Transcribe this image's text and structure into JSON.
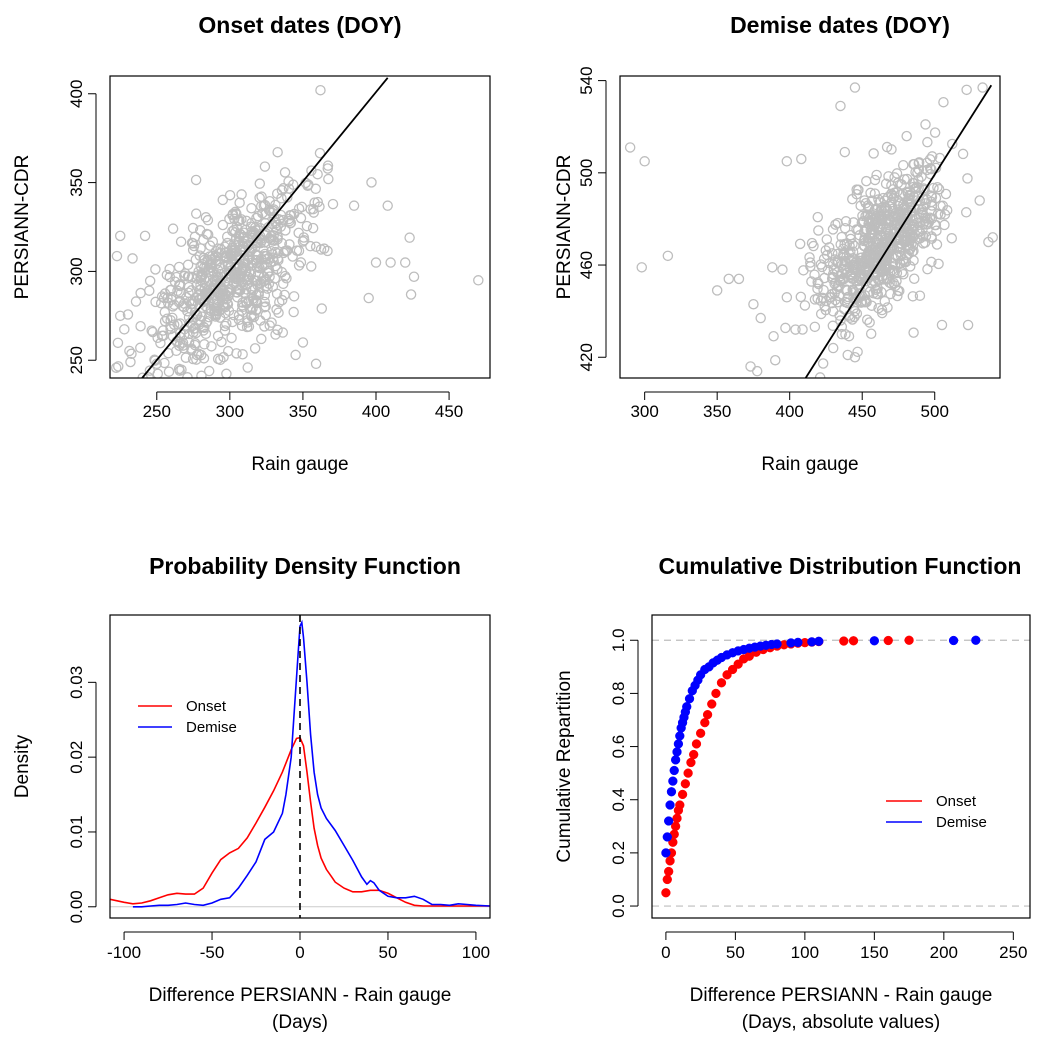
{
  "chart_data": [
    {
      "type": "scatter",
      "title": "Onset dates (DOY)",
      "xlabel": "Rain gauge",
      "ylabel": "PERSIANN-CDR",
      "xlim": [
        218,
        478
      ],
      "ylim": [
        240,
        410
      ],
      "xticks": [
        250,
        300,
        350,
        400,
        450
      ],
      "yticks": [
        250,
        300,
        350,
        400
      ],
      "point_color": "#bdbdbd",
      "fit_line": {
        "x": [
          240,
          408
        ],
        "y": [
          240,
          409
        ],
        "color": "#000000"
      },
      "cluster": {
        "x_center": 300,
        "x_sd": 28,
        "y_center": 295,
        "y_sd": 20,
        "slope": 0.55,
        "n": 700
      },
      "outliers": [
        {
          "x": 362,
          "y": 402
        },
        {
          "x": 470,
          "y": 295
        },
        {
          "x": 225,
          "y": 320
        },
        {
          "x": 225,
          "y": 275
        },
        {
          "x": 232,
          "y": 249
        },
        {
          "x": 408,
          "y": 337
        },
        {
          "x": 420,
          "y": 305
        },
        {
          "x": 423,
          "y": 319
        },
        {
          "x": 424,
          "y": 287
        },
        {
          "x": 426,
          "y": 297
        },
        {
          "x": 385,
          "y": 337
        },
        {
          "x": 345,
          "y": 253
        },
        {
          "x": 350,
          "y": 260
        },
        {
          "x": 359,
          "y": 248
        },
        {
          "x": 395,
          "y": 285
        },
        {
          "x": 400,
          "y": 305
        },
        {
          "x": 410,
          "y": 305
        },
        {
          "x": 324,
          "y": 359
        },
        {
          "x": 242,
          "y": 320
        },
        {
          "x": 250,
          "y": 248
        }
      ]
    },
    {
      "type": "scatter",
      "title": "Demise dates (DOY)",
      "xlabel": "Rain gauge",
      "ylabel": "PERSIANN-CDR",
      "xlim": [
        283,
        545
      ],
      "ylim": [
        411,
        542
      ],
      "xticks": [
        300,
        350,
        400,
        450,
        500
      ],
      "yticks": [
        420,
        460,
        500,
        540
      ],
      "point_color": "#bdbdbd",
      "fit_line": {
        "x": [
          411,
          539
        ],
        "y": [
          411,
          538
        ],
        "color": "#000000"
      },
      "cluster": {
        "x_center": 463,
        "x_sd": 22,
        "y_center": 470,
        "y_sd": 14,
        "slope": 0.5,
        "n": 700
      },
      "outliers": [
        {
          "x": 290,
          "y": 511
        },
        {
          "x": 300,
          "y": 505
        },
        {
          "x": 298,
          "y": 459
        },
        {
          "x": 316,
          "y": 464
        },
        {
          "x": 350,
          "y": 449
        },
        {
          "x": 358,
          "y": 454
        },
        {
          "x": 365,
          "y": 454
        },
        {
          "x": 373,
          "y": 416
        },
        {
          "x": 375,
          "y": 443
        },
        {
          "x": 380,
          "y": 437
        },
        {
          "x": 388,
          "y": 459
        },
        {
          "x": 395,
          "y": 458
        },
        {
          "x": 398,
          "y": 505
        },
        {
          "x": 404,
          "y": 432
        },
        {
          "x": 408,
          "y": 506
        },
        {
          "x": 435,
          "y": 529
        },
        {
          "x": 438,
          "y": 509
        },
        {
          "x": 445,
          "y": 537
        },
        {
          "x": 522,
          "y": 536
        },
        {
          "x": 533,
          "y": 537
        },
        {
          "x": 540,
          "y": 472
        },
        {
          "x": 537,
          "y": 470
        },
        {
          "x": 531,
          "y": 488
        },
        {
          "x": 523,
          "y": 434
        },
        {
          "x": 505,
          "y": 434
        },
        {
          "x": 445,
          "y": 420
        },
        {
          "x": 440,
          "y": 421
        },
        {
          "x": 430,
          "y": 424
        }
      ]
    },
    {
      "type": "line",
      "title": "Probability Density Function",
      "xlabel": "Difference PERSIANN - Rain gauge\n(Days)",
      "xlabel_lines": [
        "Difference PERSIANN - Rain gauge",
        "(Days)"
      ],
      "ylabel": "Density",
      "xlim": [
        -108,
        108
      ],
      "ylim": [
        -0.0015,
        0.039
      ],
      "xticks": [
        -100,
        -50,
        0,
        50,
        100
      ],
      "yticks": [
        0.0,
        0.01,
        0.02,
        0.03
      ],
      "ytick_labels": [
        "0.00",
        "0.01",
        "0.02",
        "0.03"
      ],
      "legend": {
        "position": "top-left",
        "entries": [
          {
            "name": "Onset",
            "color": "#ff0000"
          },
          {
            "name": "Demise",
            "color": "#0000ff"
          }
        ]
      },
      "vline": {
        "x": 0,
        "style": "dashed",
        "color": "#000000"
      },
      "hline": {
        "y": 0,
        "color": "#cccccc"
      },
      "series": [
        {
          "name": "Onset",
          "color": "#ff0000",
          "x": [
            -108,
            -100,
            -95,
            -90,
            -85,
            -80,
            -75,
            -70,
            -65,
            -60,
            -55,
            -50,
            -45,
            -40,
            -35,
            -30,
            -25,
            -20,
            -15,
            -10,
            -5,
            -2,
            0,
            2,
            4,
            6,
            8,
            10,
            12,
            15,
            18,
            20,
            25,
            30,
            35,
            40,
            45,
            50,
            55,
            60,
            65,
            70,
            80,
            90,
            100,
            108
          ],
          "y": [
            0.001,
            0.0006,
            0.0004,
            0.0005,
            0.0008,
            0.0012,
            0.0016,
            0.0018,
            0.0017,
            0.0017,
            0.0025,
            0.0045,
            0.0063,
            0.0072,
            0.0078,
            0.0092,
            0.0112,
            0.0133,
            0.0155,
            0.018,
            0.021,
            0.0225,
            0.0226,
            0.0215,
            0.018,
            0.014,
            0.0105,
            0.0082,
            0.0065,
            0.005,
            0.004,
            0.0033,
            0.0025,
            0.002,
            0.002,
            0.0022,
            0.0022,
            0.0018,
            0.0012,
            0.0006,
            0.0002,
            0.0001,
            0.0001,
            0.0001,
            0.0001,
            0.0001
          ]
        },
        {
          "name": "Demise",
          "color": "#0000ff",
          "x": [
            -95,
            -90,
            -85,
            -80,
            -75,
            -70,
            -65,
            -60,
            -55,
            -50,
            -45,
            -40,
            -35,
            -30,
            -25,
            -20,
            -15,
            -10,
            -8,
            -5,
            -3,
            -1,
            0,
            1,
            2,
            4,
            6,
            8,
            10,
            12,
            15,
            20,
            25,
            30,
            35,
            38,
            40,
            42,
            45,
            50,
            55,
            60,
            65,
            70,
            75,
            80,
            85,
            90,
            95,
            100,
            108
          ],
          "y": [
            0.0,
            0.0,
            0.0001,
            0.0002,
            0.0002,
            0.0003,
            0.0005,
            0.0003,
            0.0002,
            0.0005,
            0.001,
            0.0012,
            0.0025,
            0.0042,
            0.006,
            0.009,
            0.01,
            0.0125,
            0.015,
            0.02,
            0.027,
            0.034,
            0.0375,
            0.038,
            0.036,
            0.03,
            0.023,
            0.018,
            0.015,
            0.0132,
            0.0118,
            0.0102,
            0.0082,
            0.0062,
            0.004,
            0.003,
            0.0035,
            0.0032,
            0.0022,
            0.0014,
            0.0012,
            0.0012,
            0.0014,
            0.001,
            0.0003,
            0.0003,
            0.0002,
            0.0004,
            0.0003,
            0.0002,
            0.0001
          ]
        }
      ]
    },
    {
      "type": "scatter",
      "title": "Cumulative Distribution Function",
      "xlabel": "Difference PERSIANN - Rain gauge\n(Days, absolute values)",
      "xlabel_lines": [
        "Difference PERSIANN - Rain gauge",
        "(Days, absolute values)"
      ],
      "ylabel": "Cumulative Repartition",
      "xlim": [
        -10,
        262
      ],
      "ylim": [
        -0.045,
        1.095
      ],
      "xticks": [
        0,
        50,
        100,
        150,
        200,
        250
      ],
      "yticks": [
        0.0,
        0.2,
        0.4,
        0.6,
        0.8,
        1.0
      ],
      "ytick_labels": [
        "0.0",
        "0.2",
        "0.4",
        "0.6",
        "0.8",
        "1.0"
      ],
      "hlines": [
        {
          "y": 0,
          "color": "#bdbdbd",
          "style": "dashed"
        },
        {
          "y": 1,
          "color": "#bdbdbd",
          "style": "dashed"
        }
      ],
      "legend": {
        "position": "right",
        "entries": [
          {
            "name": "Onset",
            "color": "#ff0000"
          },
          {
            "name": "Demise",
            "color": "#0000ff"
          }
        ]
      },
      "series": [
        {
          "name": "Onset",
          "color": "#ff0000",
          "x": [
            0,
            1,
            2,
            3,
            4,
            5,
            6,
            7,
            8,
            9,
            10,
            12,
            14,
            16,
            18,
            20,
            22,
            25,
            28,
            30,
            33,
            36,
            40,
            44,
            48,
            52,
            56,
            60,
            65,
            70,
            75,
            80,
            85,
            90,
            95,
            100,
            105,
            110,
            128,
            135,
            160,
            175
          ],
          "y": [
            0.05,
            0.1,
            0.13,
            0.17,
            0.2,
            0.24,
            0.27,
            0.3,
            0.33,
            0.36,
            0.38,
            0.42,
            0.46,
            0.5,
            0.54,
            0.57,
            0.61,
            0.65,
            0.69,
            0.72,
            0.76,
            0.8,
            0.84,
            0.87,
            0.89,
            0.91,
            0.93,
            0.94,
            0.955,
            0.965,
            0.972,
            0.978,
            0.983,
            0.986,
            0.989,
            0.991,
            0.993,
            0.995,
            0.997,
            0.998,
            0.999,
            1.0
          ]
        },
        {
          "name": "Demise",
          "color": "#0000ff",
          "x": [
            0,
            1,
            2,
            3,
            4,
            5,
            6,
            7,
            8,
            9,
            10,
            11,
            12,
            13,
            14,
            15,
            17,
            19,
            21,
            23,
            25,
            28,
            31,
            34,
            37,
            40,
            44,
            48,
            52,
            56,
            60,
            64,
            68,
            72,
            76,
            80,
            90,
            95,
            105,
            110,
            150,
            207,
            223
          ],
          "y": [
            0.2,
            0.26,
            0.32,
            0.38,
            0.43,
            0.47,
            0.51,
            0.55,
            0.58,
            0.61,
            0.64,
            0.67,
            0.69,
            0.71,
            0.73,
            0.75,
            0.78,
            0.81,
            0.83,
            0.85,
            0.87,
            0.89,
            0.9,
            0.915,
            0.925,
            0.935,
            0.945,
            0.953,
            0.96,
            0.965,
            0.97,
            0.974,
            0.978,
            0.981,
            0.984,
            0.986,
            0.99,
            0.992,
            0.994,
            0.996,
            0.998,
            0.999,
            1.0
          ]
        }
      ]
    }
  ]
}
